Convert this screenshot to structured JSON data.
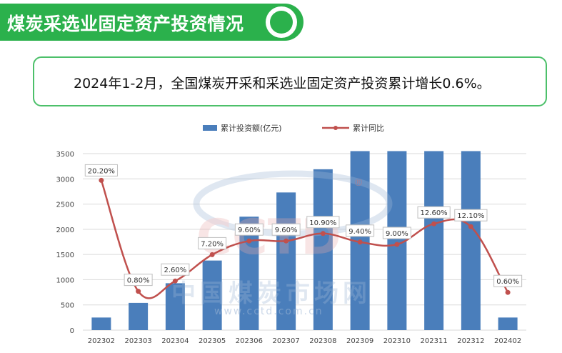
{
  "header": {
    "title": "煤炭采选业固定资产投资情况"
  },
  "summary": {
    "text": "2024年1-2月，全国煤炭开采和采选业固定资产投资累计增长0.6%。"
  },
  "watermark": {
    "brand": "CCTD",
    "cn_name": "中国煤炭市场网",
    "url": "www.cctd.com.cn",
    "registered": "®"
  },
  "colors": {
    "green": "#2bb14c",
    "bar": "#4a7ebb",
    "line": "#c0504d"
  },
  "chart_data": {
    "type": "bar",
    "categories": [
      "202302",
      "202303",
      "202304",
      "202305",
      "202306",
      "202307",
      "202308",
      "202309",
      "202310",
      "202311",
      "202312",
      "202402"
    ],
    "series": [
      {
        "name": "累计投资额(亿元)",
        "type": "bar",
        "values": [
          250,
          540,
          930,
          1380,
          2250,
          2730,
          3190,
          3700,
          3700,
          3700,
          3700,
          250
        ]
      },
      {
        "name": "累计同比",
        "type": "line",
        "values": [
          20.2,
          0.8,
          2.6,
          7.2,
          9.6,
          9.6,
          10.9,
          9.4,
          9.0,
          12.6,
          12.1,
          0.6
        ],
        "labels": [
          "20.20%",
          "0.80%",
          "2.60%",
          "7.20%",
          "9.60%",
          "9.60%",
          "10.90%",
          "9.40%",
          "9.00%",
          "12.60%",
          "12.10%",
          "0.60%"
        ]
      }
    ],
    "yticks": [
      "0",
      "500",
      "1000",
      "1500",
      "2000",
      "2500",
      "3000",
      "3500"
    ],
    "ylim": [
      0,
      3600
    ],
    "legend_position": "top-center",
    "grid": true
  }
}
